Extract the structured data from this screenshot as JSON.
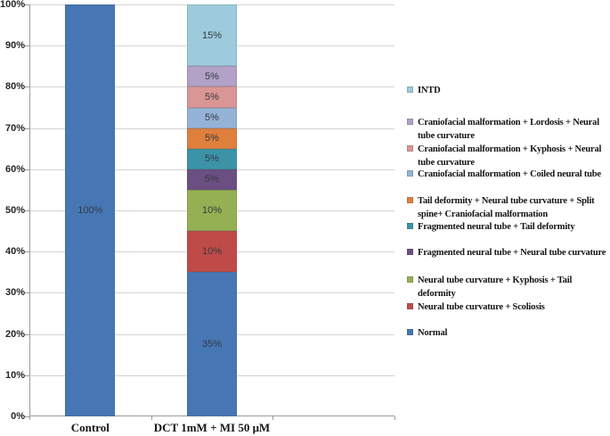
{
  "figure": {
    "background": "#FFFFFF",
    "gridline_color": "#D4D4D4",
    "axis_color": "#9B9B9B"
  },
  "chart_data": {
    "type": "bar",
    "stacked": true,
    "percent_stacked": true,
    "title": "",
    "xlabel": "",
    "ylabel": "",
    "ylim": [
      0,
      100
    ],
    "grid": true,
    "legend_position": "right",
    "legend_order": "reversed",
    "data_label_suffix": "%",
    "y_tick_labels": [
      "0%",
      "10%",
      "20%",
      "30%",
      "40%",
      "50%",
      "60%",
      "70%",
      "80%",
      "90%",
      "100%"
    ],
    "categories": [
      "Control",
      "DCT 1mM + MI 50 μM"
    ],
    "series": [
      {
        "name": "Normal",
        "color": "#4677B4",
        "values": [
          100,
          35
        ]
      },
      {
        "name": "Neural tube curvature + Scoliosis",
        "color": "#BE4B48",
        "values": [
          0,
          10
        ]
      },
      {
        "name": "Neural tube curvature + Kyphosis + Tail deformity",
        "color": "#95B052",
        "values": [
          0,
          10
        ]
      },
      {
        "name": "Fragmented neural tube + Neural tube curvature",
        "color": "#6B4F82",
        "values": [
          0,
          5
        ]
      },
      {
        "name": "Fragmented neural tube + Tail deformity",
        "color": "#3C93A8",
        "values": [
          0,
          5
        ]
      },
      {
        "name": "Tail deformity + Neural tube curvature + Split spine+ Craniofacial malformation",
        "color": "#DF7F3C",
        "values": [
          0,
          5
        ]
      },
      {
        "name": "Craniofacial malformation + Coiled neural tube",
        "color": "#95B3D7",
        "values": [
          0,
          5
        ]
      },
      {
        "name": "Craniofacial malformation + Kyphosis + Neural tube curvature",
        "color": "#D99694",
        "values": [
          0,
          5
        ]
      },
      {
        "name": "Craniofacial malformation + Lordosis + Neural tube curvature",
        "color": "#B2A2C7",
        "values": [
          0,
          5
        ]
      },
      {
        "name": "INTD",
        "color": "#9DCBDC",
        "values": [
          0,
          15
        ]
      }
    ]
  }
}
